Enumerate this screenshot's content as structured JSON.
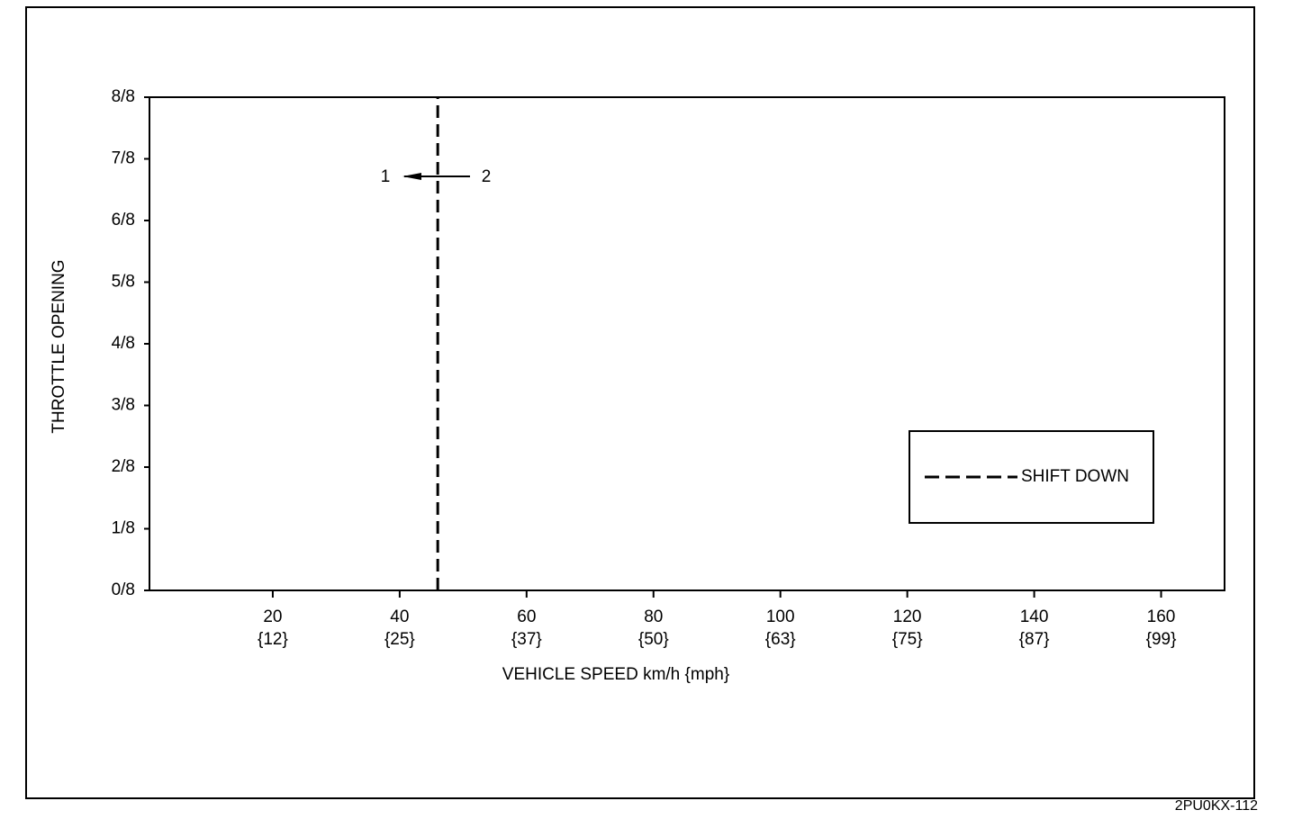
{
  "chart_data": {
    "type": "line",
    "x_label": "VEHICLE SPEED km/h {mph}",
    "y_label": "THROTTLE OPENING",
    "xlim": [
      0,
      170
    ],
    "ylim": [
      0,
      1
    ],
    "xticks": [
      20,
      40,
      60,
      80,
      100,
      120,
      140,
      160
    ],
    "xtick_sublabels": [
      "{12}",
      "{25}",
      "{37}",
      "{50}",
      "{63}",
      "{75}",
      "{87}",
      "{99}"
    ],
    "yticks": [
      {
        "value": 0,
        "label": "0/8"
      },
      {
        "value": 0.125,
        "label": "1/8"
      },
      {
        "value": 0.25,
        "label": "2/8"
      },
      {
        "value": 0.375,
        "label": "3/8"
      },
      {
        "value": 0.5,
        "label": "4/8"
      },
      {
        "value": 0.625,
        "label": "5/8"
      },
      {
        "value": 0.75,
        "label": "6/8"
      },
      {
        "value": 0.875,
        "label": "7/8"
      },
      {
        "value": 1,
        "label": "8/8"
      }
    ],
    "series": [
      {
        "name": "SHIFT DOWN",
        "color": "#000000",
        "dashed": true,
        "x": [
          46,
          46
        ],
        "values": [
          0,
          1
        ]
      }
    ],
    "annotations": [
      "1",
      "2"
    ],
    "figure_code": "2PU0KX-112"
  }
}
